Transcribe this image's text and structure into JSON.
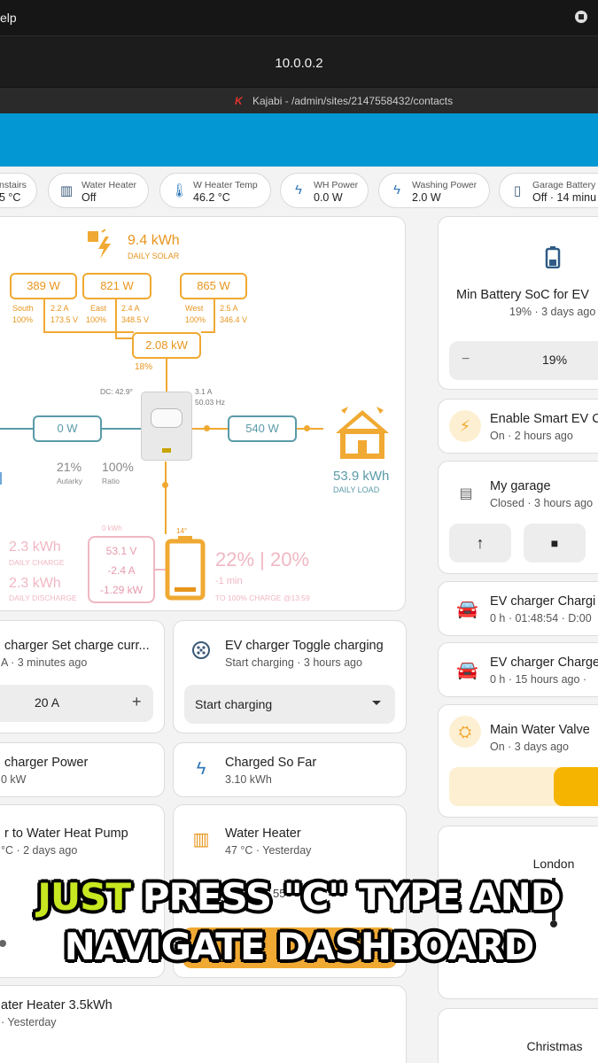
{
  "browser": {
    "menu_fragment": "elp",
    "url": "10.0.0.2",
    "tab_title": "Kajabi - /admin/sites/2147558432/contacts"
  },
  "chips": [
    {
      "label": "nstairs",
      "value": "5 °C",
      "icon": "thermometer-icon"
    },
    {
      "label": "Water Heater",
      "value": "Off",
      "icon": "water-heater-icon"
    },
    {
      "label": "W Heater Temp",
      "value": "46.2 °C",
      "icon": "thermometer-icon"
    },
    {
      "label": "WH Power",
      "value": "0.0 W",
      "icon": "lightning-icon"
    },
    {
      "label": "Washing Power",
      "value": "2.0 W",
      "icon": "lightning-icon"
    },
    {
      "label": "Garage Battery",
      "value": "Off · 14 minu",
      "icon": "phone-icon"
    }
  ],
  "energy": {
    "daily_solar": "9.4 kWh",
    "daily_solar_label": "DAILY SOLAR",
    "strings": [
      {
        "power": "389 W",
        "name": "South",
        "pct": "100%",
        "amps": "2.2 A",
        "volts": "173.5 V"
      },
      {
        "power": "821 W",
        "name": "East",
        "pct": "100%",
        "amps": "2.4 A",
        "volts": "348.5 V"
      },
      {
        "power": "865 W",
        "name": "West",
        "pct": "100%",
        "amps": "2.5 A",
        "volts": "346.4 V"
      }
    ],
    "pv_total": "2.08 kW",
    "pv_pct": "18%",
    "dc_temp": "DC: 42.9°",
    "inv_amps": "3.1 A",
    "inv_freq": "50.03 Hz",
    "grid_power": "0 W",
    "load_power": "540 W",
    "autarky_value": "21%",
    "autarky_label": "Autarky",
    "ratio_value": "100%",
    "ratio_label": "Ratio",
    "daily_load": "53.9 kWh",
    "daily_load_label": "DAILY LOAD",
    "battery_temp": "14°",
    "daily_charge": "2.3 kWh",
    "daily_charge_label": "DAILY CHARGE",
    "daily_discharge": "2.3 kWh",
    "daily_discharge_label": "DAILY DISCHARGE",
    "bat_box_kwh": "0 kWh",
    "bat_volts": "53.1 V",
    "bat_amps": "-2.4 A",
    "bat_power": "-1.29 kW",
    "soc": "22% | 20%",
    "soc_time": "-1 min",
    "soc_target": "TO 100% CHARGE @13:59"
  },
  "cards": {
    "set_charge": {
      "title": "charger Set charge curr...",
      "sub": "A · 3 minutes ago",
      "value": "20 A",
      "plus": "+"
    },
    "toggle": {
      "title": "EV charger Toggle charging",
      "sub": "Start charging · 3 hours ago",
      "select": "Start charging"
    },
    "ev_power": {
      "title": "charger Power",
      "sub": "0 kW"
    },
    "charged": {
      "title": "Charged So Far",
      "sub": "3.10 kWh"
    },
    "heat_pump": {
      "title": "r to Water Heat Pump",
      "sub": "°C · 2 days ago"
    },
    "water_heater": {
      "title": "Water Heater",
      "sub": "47 °C · Yesterday",
      "partial": "55"
    },
    "heater_35": {
      "title": "ater Heater 3.5kWh",
      "sub": "· Yesterday"
    }
  },
  "right": {
    "min_soc": {
      "title": "Min Battery SoC for EV",
      "sub": "19% · 3 days ago",
      "value": "19%",
      "minus": "−"
    },
    "smart_ev": {
      "title": "Enable Smart EV C",
      "sub": "On · 2 hours ago"
    },
    "garage": {
      "title": "My garage",
      "sub": "Closed · 3 hours ago",
      "up": "↑",
      "stop": "■"
    },
    "ev_charging": {
      "title": "EV charger Chargi",
      "sub": "0 h · 01:48:54 · D:00"
    },
    "ev_charge": {
      "title": "EV charger Charge",
      "sub": "0 h · 15 hours ago ·"
    },
    "valve": {
      "title": "Main Water Valve",
      "sub": "On · 3 days ago"
    },
    "clock1": "London",
    "clock2": "Christmas"
  },
  "caption": {
    "highlight": "JUST",
    "line1_rest": "PRESS \"C\" TYPE AND",
    "line2": "NAVIGATE DASHBOARD"
  },
  "colors": {
    "header": "#0398d4",
    "solar": "#f0a932",
    "grid": "#5a9ba8",
    "battery_pink": "#f0b7c3",
    "caption_highlight": "#c7e820"
  }
}
